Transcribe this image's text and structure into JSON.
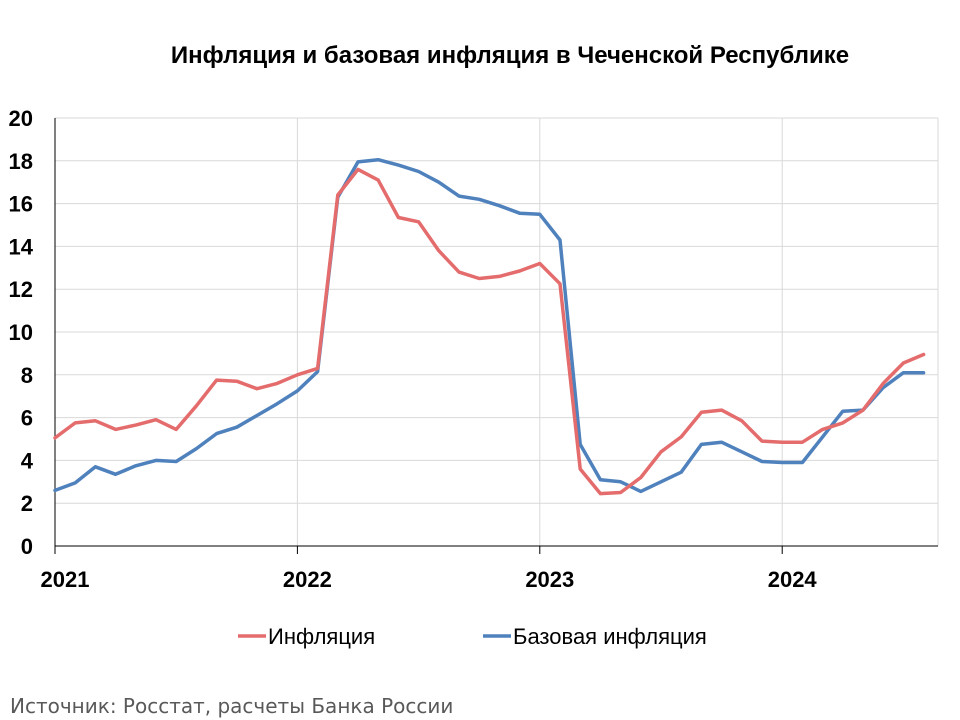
{
  "chart_data": {
    "type": "line",
    "title": "Инфляция и базовая инфляция в Чеченской Республике",
    "xlabel": "",
    "ylabel": "",
    "ylim": [
      0,
      20
    ],
    "yticks": [
      "0",
      "2",
      "4",
      "6",
      "8",
      "10",
      "12",
      "14",
      "16",
      "18",
      "20"
    ],
    "xticks": [
      "2021",
      "2022",
      "2023",
      "2024"
    ],
    "x": [
      "2021-01",
      "2021-02",
      "2021-03",
      "2021-04",
      "2021-05",
      "2021-06",
      "2021-07",
      "2021-08",
      "2021-09",
      "2021-10",
      "2021-11",
      "2021-12",
      "2022-01",
      "2022-02",
      "2022-03",
      "2022-04",
      "2022-05",
      "2022-06",
      "2022-07",
      "2022-08",
      "2022-09",
      "2022-10",
      "2022-11",
      "2022-12",
      "2023-01",
      "2023-02",
      "2023-03",
      "2023-04",
      "2023-05",
      "2023-06",
      "2023-07",
      "2023-08",
      "2023-09",
      "2023-10",
      "2023-11",
      "2023-12",
      "2024-01",
      "2024-02",
      "2024-03",
      "2024-04",
      "2024-05",
      "2024-06",
      "2024-07",
      "2024-08"
    ],
    "grid": true,
    "legend_position": "bottom",
    "series": [
      {
        "name": "Инфляция",
        "color": "#E46C6C",
        "values": [
          5.05,
          5.75,
          5.85,
          5.45,
          5.65,
          5.9,
          5.45,
          6.55,
          7.75,
          7.7,
          7.35,
          7.6,
          8.0,
          8.3,
          16.4,
          17.6,
          17.1,
          15.35,
          15.15,
          13.8,
          12.8,
          12.5,
          12.6,
          12.85,
          13.2,
          12.25,
          3.6,
          2.45,
          2.5,
          3.2,
          4.4,
          5.1,
          6.25,
          6.35,
          5.85,
          4.9,
          4.85,
          4.85,
          5.45,
          5.75,
          6.35,
          7.6,
          8.55,
          8.95
        ]
      },
      {
        "name": "Базовая инфляция",
        "color": "#4F81BD",
        "values": [
          2.6,
          2.95,
          3.7,
          3.35,
          3.75,
          4.0,
          3.95,
          4.55,
          5.25,
          5.55,
          6.1,
          6.65,
          7.25,
          8.15,
          16.3,
          17.95,
          18.05,
          17.8,
          17.5,
          17.0,
          16.35,
          16.2,
          15.9,
          15.55,
          15.5,
          14.3,
          4.75,
          3.1,
          3.0,
          2.55,
          3.0,
          3.45,
          4.75,
          4.85,
          4.4,
          3.95,
          3.9,
          3.9,
          5.1,
          6.3,
          6.35,
          7.4,
          8.1,
          8.1
        ]
      }
    ]
  },
  "source_note": "Источник: Росстат, расчеты Банка России"
}
